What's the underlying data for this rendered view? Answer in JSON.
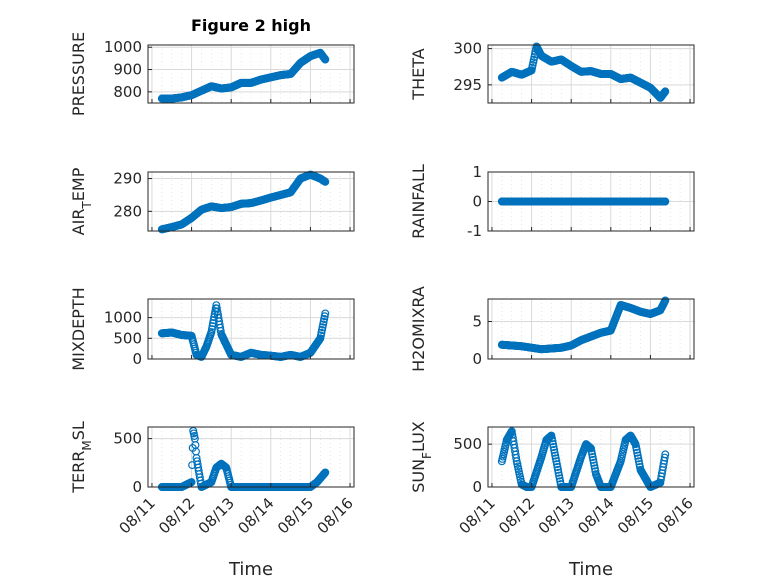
{
  "figure": {
    "title": "Figure 2 high"
  },
  "colors": {
    "marker": "#0072BD",
    "axis": "#262626",
    "grid": "#d9d9d9"
  },
  "chart_data": [
    {
      "type": "scatter",
      "title": "Figure 2 high",
      "ylabel": "PRESSURE",
      "ylabel_sub": "",
      "ylim": [
        750,
        1010
      ],
      "yticks": [
        800,
        900,
        1000
      ],
      "xlabel": "",
      "grid": true,
      "x": [
        "2023-08-11 06:00",
        "2023-08-11 12:00",
        "2023-08-11 18:00",
        "2023-08-12 00:00",
        "2023-08-12 06:00",
        "2023-08-12 12:00",
        "2023-08-12 18:00",
        "2023-08-13 00:00",
        "2023-08-13 06:00",
        "2023-08-13 12:00",
        "2023-08-13 18:00",
        "2023-08-14 00:00",
        "2023-08-14 06:00",
        "2023-08-14 12:00",
        "2023-08-14 18:00",
        "2023-08-15 00:00",
        "2023-08-15 06:00",
        "2023-08-15 09:00"
      ],
      "values": [
        770,
        770,
        775,
        785,
        805,
        825,
        815,
        820,
        840,
        840,
        855,
        865,
        875,
        880,
        930,
        960,
        975,
        945
      ]
    },
    {
      "type": "scatter",
      "ylabel": "THETA",
      "ylabel_sub": "",
      "ylim": [
        292.5,
        300.5
      ],
      "yticks": [
        295,
        300
      ],
      "xlabel": "",
      "grid": true,
      "x": [
        "2023-08-11 06:00",
        "2023-08-11 12:00",
        "2023-08-11 18:00",
        "2023-08-12 00:00",
        "2023-08-12 03:00",
        "2023-08-12 06:00",
        "2023-08-12 12:00",
        "2023-08-12 18:00",
        "2023-08-13 00:00",
        "2023-08-13 06:00",
        "2023-08-13 12:00",
        "2023-08-13 18:00",
        "2023-08-14 00:00",
        "2023-08-14 06:00",
        "2023-08-14 12:00",
        "2023-08-14 18:00",
        "2023-08-15 00:00",
        "2023-08-15 06:00",
        "2023-08-15 09:00"
      ],
      "values": [
        296.0,
        296.8,
        296.4,
        297.0,
        300.3,
        299.0,
        298.2,
        298.5,
        297.6,
        296.8,
        296.9,
        296.5,
        296.5,
        295.8,
        296.0,
        295.3,
        294.6,
        293.2,
        294.1
      ]
    },
    {
      "type": "scatter",
      "ylabel": "AIR",
      "ylabel_sub": "T",
      "ylabel_rest": "EMP",
      "ylim": [
        274,
        292
      ],
      "yticks": [
        280,
        290
      ],
      "xlabel": "",
      "grid": true,
      "x": [
        "2023-08-11 06:00",
        "2023-08-11 12:00",
        "2023-08-11 18:00",
        "2023-08-12 00:00",
        "2023-08-12 06:00",
        "2023-08-12 12:00",
        "2023-08-12 18:00",
        "2023-08-13 00:00",
        "2023-08-13 06:00",
        "2023-08-13 12:00",
        "2023-08-13 18:00",
        "2023-08-14 00:00",
        "2023-08-14 06:00",
        "2023-08-14 12:00",
        "2023-08-14 18:00",
        "2023-08-15 00:00",
        "2023-08-15 06:00",
        "2023-08-15 09:00"
      ],
      "values": [
        274.5,
        275.2,
        276.0,
        278.0,
        280.5,
        281.5,
        281.0,
        281.3,
        282.3,
        282.5,
        283.3,
        284.2,
        285.0,
        285.8,
        290.0,
        291.2,
        290.0,
        289.0
      ]
    },
    {
      "type": "scatter",
      "ylabel": "RAINFALL",
      "ylabel_sub": "",
      "ylim": [
        -1,
        1
      ],
      "yticks": [
        -1,
        0,
        1
      ],
      "xlabel": "",
      "grid": true,
      "x": [
        "2023-08-11 06:00",
        "2023-08-11 18:00",
        "2023-08-12 06:00",
        "2023-08-12 18:00",
        "2023-08-13 06:00",
        "2023-08-13 18:00",
        "2023-08-14 06:00",
        "2023-08-14 18:00",
        "2023-08-15 06:00",
        "2023-08-15 09:00"
      ],
      "values": [
        0,
        0,
        0,
        0,
        0,
        0,
        0,
        0,
        0,
        0
      ]
    },
    {
      "type": "scatter",
      "ylabel": "MIXDEPTH",
      "ylabel_sub": "",
      "ylim": [
        0,
        1450
      ],
      "yticks": [
        0,
        500,
        1000
      ],
      "xlabel": "",
      "grid": true,
      "x": [
        "2023-08-11 06:00",
        "2023-08-11 12:00",
        "2023-08-11 18:00",
        "2023-08-12 00:00",
        "2023-08-12 03:00",
        "2023-08-12 06:00",
        "2023-08-12 09:00",
        "2023-08-12 12:00",
        "2023-08-12 15:00",
        "2023-08-12 18:00",
        "2023-08-13 00:00",
        "2023-08-13 06:00",
        "2023-08-13 12:00",
        "2023-08-13 18:00",
        "2023-08-14 00:00",
        "2023-08-14 06:00",
        "2023-08-14 12:00",
        "2023-08-14 18:00",
        "2023-08-15 00:00",
        "2023-08-15 06:00",
        "2023-08-15 09:00"
      ],
      "values": [
        620,
        640,
        580,
        560,
        100,
        50,
        300,
        650,
        1300,
        600,
        100,
        50,
        150,
        100,
        80,
        50,
        100,
        50,
        150,
        500,
        1100
      ]
    },
    {
      "type": "scatter",
      "ylabel": "H2OMIXRA",
      "ylabel_sub": "",
      "ylim": [
        0,
        8
      ],
      "yticks": [
        0,
        5
      ],
      "xlabel": "",
      "grid": true,
      "x": [
        "2023-08-11 06:00",
        "2023-08-11 12:00",
        "2023-08-11 18:00",
        "2023-08-12 00:00",
        "2023-08-12 06:00",
        "2023-08-12 12:00",
        "2023-08-12 18:00",
        "2023-08-13 00:00",
        "2023-08-13 06:00",
        "2023-08-13 12:00",
        "2023-08-13 18:00",
        "2023-08-14 00:00",
        "2023-08-14 06:00",
        "2023-08-14 12:00",
        "2023-08-14 18:00",
        "2023-08-15 00:00",
        "2023-08-15 06:00",
        "2023-08-15 09:00"
      ],
      "values": [
        1.9,
        1.8,
        1.7,
        1.5,
        1.3,
        1.4,
        1.5,
        1.8,
        2.5,
        3.0,
        3.5,
        3.8,
        7.2,
        6.8,
        6.3,
        6.0,
        6.5,
        7.8
      ]
    },
    {
      "type": "scatter",
      "ylabel": "TERR",
      "ylabel_sub": "M",
      "ylabel_rest": "SL",
      "ylim": [
        0,
        620
      ],
      "yticks": [
        0,
        500
      ],
      "xlabel": "Time",
      "grid": true,
      "xticks": [
        "08/11",
        "08/12",
        "08/13",
        "08/14",
        "08/15",
        "08/16"
      ],
      "x": [
        "2023-08-11 06:00",
        "2023-08-11 12:00",
        "2023-08-11 18:00",
        "2023-08-12 00:00",
        "2023-08-12 01:00",
        "2023-08-12 02:00",
        "2023-08-12 03:00",
        "2023-08-12 06:00",
        "2023-08-12 12:00",
        "2023-08-12 15:00",
        "2023-08-12 18:00",
        "2023-08-12 21:00",
        "2023-08-13 00:00",
        "2023-08-13 06:00",
        "2023-08-13 12:00",
        "2023-08-14 00:00",
        "2023-08-14 12:00",
        "2023-08-15 00:00",
        "2023-08-15 04:00",
        "2023-08-15 09:00"
      ],
      "values": [
        0,
        0,
        0,
        50,
        580,
        500,
        300,
        0,
        50,
        200,
        240,
        200,
        0,
        0,
        0,
        0,
        0,
        0,
        50,
        150
      ]
    },
    {
      "type": "scatter",
      "ylabel": "SUN",
      "ylabel_sub": "F",
      "ylabel_rest": "LUX",
      "ylim": [
        0,
        700
      ],
      "yticks": [
        0,
        500
      ],
      "xlabel": "Time",
      "grid": true,
      "xticks": [
        "08/11",
        "08/12",
        "08/13",
        "08/14",
        "08/15",
        "08/16"
      ],
      "x": [
        "2023-08-11 06:00",
        "2023-08-11 09:00",
        "2023-08-11 12:00",
        "2023-08-11 15:00",
        "2023-08-11 18:00",
        "2023-08-11 21:00",
        "2023-08-12 00:00",
        "2023-08-12 06:00",
        "2023-08-12 09:00",
        "2023-08-12 12:00",
        "2023-08-12 15:00",
        "2023-08-12 18:00",
        "2023-08-12 21:00",
        "2023-08-13 00:00",
        "2023-08-13 06:00",
        "2023-08-13 09:00",
        "2023-08-13 12:00",
        "2023-08-13 15:00",
        "2023-08-13 18:00",
        "2023-08-14 00:00",
        "2023-08-14 06:00",
        "2023-08-14 09:00",
        "2023-08-14 12:00",
        "2023-08-14 15:00",
        "2023-08-14 18:00",
        "2023-08-15 00:00",
        "2023-08-15 06:00",
        "2023-08-15 09:00"
      ],
      "values": [
        300,
        550,
        650,
        300,
        30,
        0,
        0,
        350,
        550,
        600,
        300,
        0,
        0,
        0,
        350,
        500,
        450,
        150,
        0,
        0,
        300,
        550,
        600,
        500,
        200,
        0,
        50,
        380
      ]
    }
  ]
}
